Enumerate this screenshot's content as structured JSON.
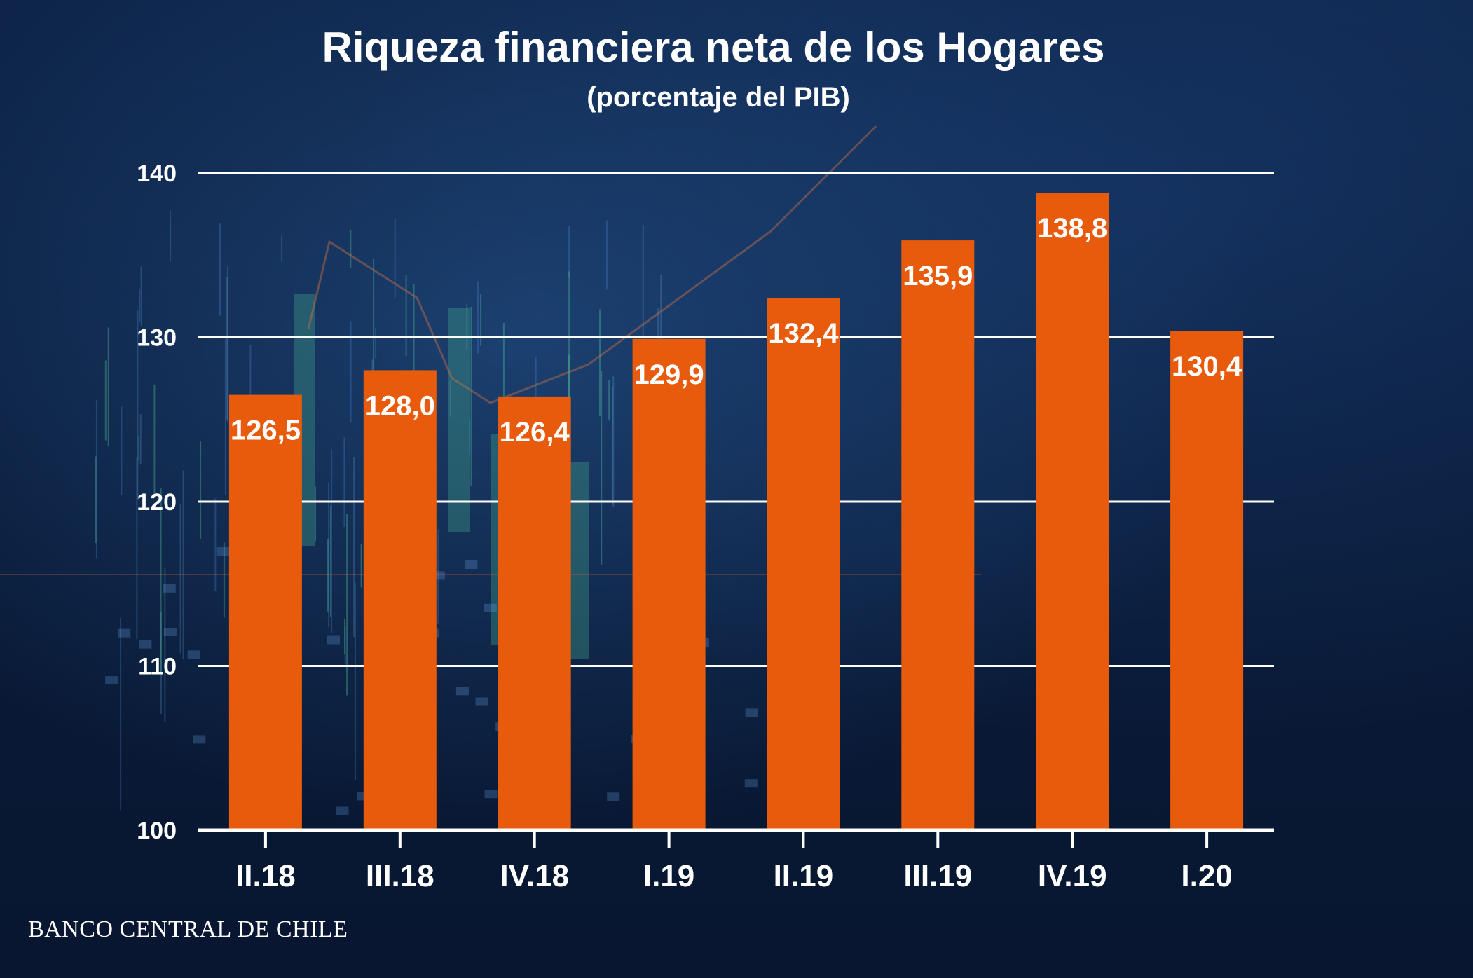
{
  "chart_data": {
    "type": "bar",
    "title": "Riqueza financiera neta de los Hogares",
    "subtitle": "(porcentaje del PIB)",
    "categories": [
      "II.18",
      "III.18",
      "IV.18",
      "I.19",
      "II.19",
      "III.19",
      "IV.19",
      "I.20"
    ],
    "values": [
      126.5,
      128.0,
      126.4,
      129.9,
      132.4,
      135.9,
      138.8,
      130.4
    ],
    "value_labels": [
      "126,5",
      "128,0",
      "126,4",
      "129,9",
      "132,4",
      "135,9",
      "138,8",
      "130,4"
    ],
    "ylim": [
      100,
      140
    ],
    "yticks": [
      100,
      110,
      120,
      130,
      140
    ],
    "xlabel": "",
    "ylabel": "",
    "grid": true,
    "bar_color": "#e85a0c",
    "grid_color": "#ffffff"
  },
  "source": "BANCO CENTRAL DE CHILE"
}
